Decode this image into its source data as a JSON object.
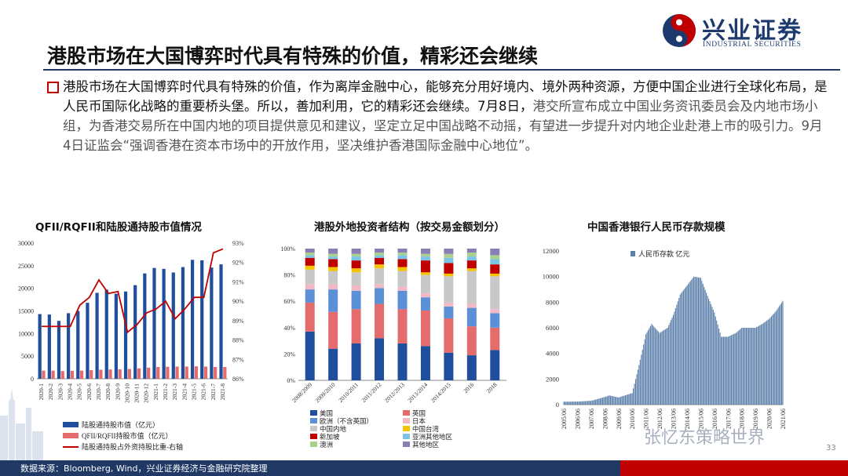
{
  "header": {
    "title": "港股市场在大国博弈时代具有特殊的价值，精彩还会继续",
    "logo_text": "兴业证券",
    "logo_sub": "INDUSTRIAL SECURITIES"
  },
  "body": {
    "para_dark": "港股市场在大国博弈时代具有特殊的价值，作为离岸金融中心，能够充分用好境内、境外两种资源，方便中国企业进行全球化布局，是人民币国际化战略的重要桥头堡。所以，善加利用，它的精彩还会继续。7月8日，",
    "para_light": "港交所宣布成立中国业务资讯委员会及内地市场小组，为香港交易所在中国内地的项目提供意见和建议，坚定立足中国战略不动摇，有望进一步提升对内地企业赴港上市的吸引力。9月4日证监会“强调香港在资本市场中的开放作用，坚决维护香港国际金融中心地位”。"
  },
  "footer": {
    "source": "数据来源：Bloomberg, Wind，兴业证券经济与金融研究院整理",
    "page": "33",
    "watermark": "张忆东策略世界"
  },
  "colors": {
    "navy": "#1f3864",
    "red": "#c00000",
    "blue": "#1f4e9c",
    "pink": "#e46c6c"
  },
  "chart_data": [
    {
      "type": "bar",
      "title": "QFII/RQFII和陆股通持股市值情况",
      "categories": [
        "2020-1",
        "2020-2",
        "2020-3",
        "2020-4",
        "2020-5",
        "2020-6",
        "2020-7",
        "2020-8",
        "2020-9",
        "2020-10",
        "2020-11",
        "2020-12",
        "2021-1",
        "2021-2",
        "2021-3",
        "2021-4",
        "2021-5",
        "2021-6",
        "2021-7",
        "2021-8"
      ],
      "ylim": [
        0,
        30000
      ],
      "y2lim": [
        86,
        93
      ],
      "yticks": [
        "0",
        "5000",
        "10000",
        "15000",
        "20000",
        "25000",
        "30000"
      ],
      "y2ticks": [
        "86%",
        "87%",
        "88%",
        "89%",
        "90%",
        "91%",
        "92%",
        "93%"
      ],
      "series": [
        {
          "name": "陆股通持股市值（亿元）",
          "axis": "left",
          "values": [
            14300,
            14200,
            12800,
            14500,
            15000,
            16800,
            19000,
            19700,
            18800,
            19300,
            20700,
            23300,
            24500,
            24300,
            23500,
            24700,
            26300,
            26200,
            24600,
            25300
          ]
        },
        {
          "name": "QFII/RQFII持股市值（亿元）",
          "axis": "left",
          "values": [
            1800,
            1800,
            1700,
            1750,
            1800,
            1900,
            2000,
            2050,
            2100,
            2150,
            2300,
            2450,
            2600,
            2650,
            2700,
            2700,
            2750,
            2700,
            2600,
            2600
          ]
        },
        {
          "name": "陆股通持股占外资持股比重-右轴",
          "axis": "right",
          "type": "line",
          "values": [
            88.7,
            88.7,
            88.7,
            88.7,
            89.8,
            90.2,
            91.1,
            90.4,
            90.5,
            88.4,
            88.8,
            89.4,
            89.6,
            90.0,
            89.1,
            89.6,
            90.2,
            90.2,
            92.5,
            92.7
          ]
        }
      ]
    },
    {
      "type": "bar",
      "stacked": true,
      "title": "港股外地投资者结构（按交易金额划分）",
      "categories": [
        "2008/2009",
        "2009/2010",
        "2010/2011",
        "2011/2012",
        "2012/2013",
        "2013/2014",
        "2014/2015",
        "2016",
        "2018"
      ],
      "yticks": [
        "0%",
        "20%",
        "40%",
        "60%",
        "80%",
        "100%"
      ],
      "series": [
        {
          "name": "美国",
          "color": "#1f4e9c",
          "values": [
            37,
            24,
            28,
            32,
            28,
            26,
            21,
            19,
            23
          ]
        },
        {
          "name": "英国",
          "color": "#e46c6c",
          "values": [
            22,
            28,
            26,
            26,
            26,
            27,
            26,
            22,
            17
          ]
        },
        {
          "name": "欧洲（不含英国）",
          "color": "#5b8fd6",
          "values": [
            10,
            17,
            14,
            12,
            14,
            10,
            9,
            14,
            11
          ]
        },
        {
          "name": "日本",
          "color": "#f2b8c6",
          "values": [
            4,
            4,
            4,
            3,
            3,
            3,
            3,
            3,
            3
          ]
        },
        {
          "name": "中国内地",
          "color": "#c8c8c8",
          "values": [
            11,
            10,
            10,
            12,
            12,
            14,
            20,
            25,
            25
          ]
        },
        {
          "name": "中国台湾",
          "color": "#f5c400",
          "values": [
            3,
            3,
            3,
            3,
            3,
            2,
            2,
            2,
            2
          ]
        },
        {
          "name": "新加坡",
          "color": "#c00000",
          "values": [
            6,
            6,
            6,
            5,
            6,
            9,
            8,
            6,
            7
          ]
        },
        {
          "name": "亚洲其他地区",
          "color": "#7dc3e6",
          "values": [
            2,
            2,
            3,
            2,
            3,
            3,
            4,
            3,
            4
          ]
        },
        {
          "name": "澳洲",
          "color": "#a9d18e",
          "values": [
            2,
            2,
            2,
            2,
            2,
            2,
            3,
            3,
            3
          ]
        },
        {
          "name": "其他地区",
          "color": "#8a7fb5",
          "values": [
            3,
            4,
            4,
            3,
            3,
            4,
            4,
            3,
            5
          ]
        }
      ]
    },
    {
      "type": "bar",
      "title": "中国香港银行人民币存款规模",
      "legend": "人民币存款 亿元",
      "ylim": [
        0,
        12000
      ],
      "yticks": [
        "0",
        "2000",
        "4000",
        "6000",
        "8000",
        "10000",
        "12000"
      ],
      "xticks": [
        "2005/06",
        "2006/06",
        "2007/06",
        "2008/06",
        "2009/06",
        "2010/06",
        "2011/06",
        "2012/06",
        "2013/06",
        "2014/06",
        "2015/06",
        "2016/06",
        "2017/06",
        "2018/06",
        "2019/06",
        "2020/06",
        "2021/06"
      ],
      "anchors": [
        [
          "2005/06",
          230
        ],
        [
          "2006/06",
          240
        ],
        [
          "2007/06",
          300
        ],
        [
          "2008/06",
          600
        ],
        [
          "2008/10",
          720
        ],
        [
          "2009/06",
          560
        ],
        [
          "2010/06",
          900
        ],
        [
          "2010/12",
          3100
        ],
        [
          "2011/06",
          5500
        ],
        [
          "2011/11",
          6300
        ],
        [
          "2012/06",
          5600
        ],
        [
          "2013/01",
          6000
        ],
        [
          "2013/06",
          7000
        ],
        [
          "2013/12",
          8600
        ],
        [
          "2014/06",
          9300
        ],
        [
          "2014/12",
          10000
        ],
        [
          "2015/06",
          9900
        ],
        [
          "2015/12",
          8500
        ],
        [
          "2016/06",
          7200
        ],
        [
          "2016/12",
          5300
        ],
        [
          "2017/06",
          5300
        ],
        [
          "2018/01",
          5600
        ],
        [
          "2018/06",
          6000
        ],
        [
          "2019/06",
          6000
        ],
        [
          "2019/12",
          6300
        ],
        [
          "2020/06",
          6700
        ],
        [
          "2020/12",
          7300
        ],
        [
          "2021/06",
          8100
        ]
      ]
    }
  ]
}
